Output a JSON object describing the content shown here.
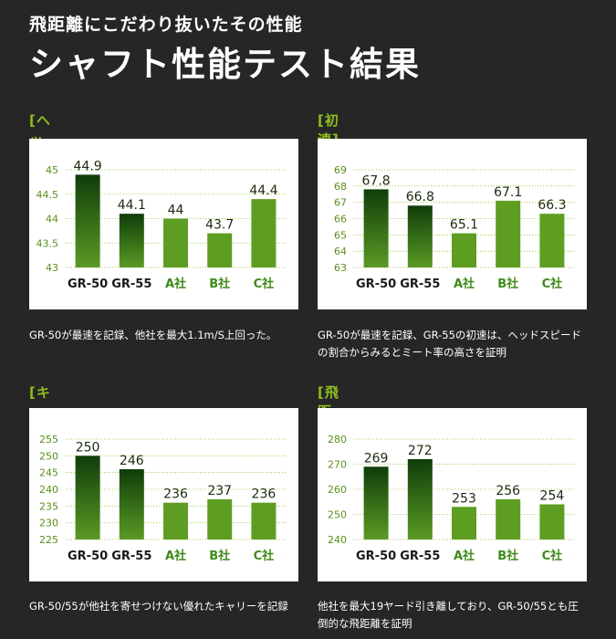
{
  "header": {
    "subtitle": "飛距離にこだわり抜いたその性能",
    "title": "シャフト性能テスト結果"
  },
  "colors": {
    "accent": "#8fbf1e",
    "gr_dark": "#0f3d0a",
    "gr_light": "#5a9a24",
    "other": "#5d9e22",
    "gr_label": "#1a1a1a",
    "other_label": "#3e8a1a"
  },
  "chart_data": [
    {
      "type": "bar",
      "heading": "[ヘッドスピード]",
      "categories": [
        "GR-50",
        "GR-55",
        "A社",
        "B社",
        "C社"
      ],
      "values": [
        44.9,
        44.1,
        44,
        43.7,
        44.4
      ],
      "value_labels": [
        "44.9",
        "44.1",
        "44",
        "43.7",
        "44.4"
      ],
      "ylim": [
        43,
        45
      ],
      "yticks": [
        "43",
        "43.5",
        "44",
        "44.5",
        "45"
      ],
      "grid": true,
      "caption": "GR-50が最速を記録、他社を最大1.1m/S上回った。"
    },
    {
      "type": "bar",
      "heading": "[初速]",
      "categories": [
        "GR-50",
        "GR-55",
        "A社",
        "B社",
        "C社"
      ],
      "values": [
        67.8,
        66.8,
        65.1,
        67.1,
        66.3
      ],
      "value_labels": [
        "67.8",
        "66.8",
        "65.1",
        "67.1",
        "66.3"
      ],
      "ylim": [
        63,
        69
      ],
      "yticks": [
        "63",
        "64",
        "65",
        "66",
        "67",
        "68",
        "69"
      ],
      "grid": true,
      "caption": "GR-50が最速を記録、GR-55の初速は、ヘッドスピードの割合からみるとミート率の高さを証明"
    },
    {
      "type": "bar",
      "heading": "[キャリー]",
      "categories": [
        "GR-50",
        "GR-55",
        "A社",
        "B社",
        "C社"
      ],
      "values": [
        250,
        246,
        236,
        237,
        236
      ],
      "value_labels": [
        "250",
        "246",
        "236",
        "237",
        "236"
      ],
      "ylim": [
        225,
        255
      ],
      "yticks": [
        "225",
        "230",
        "235",
        "240",
        "245",
        "250",
        "255"
      ],
      "grid": true,
      "caption": "GR-50/55が他社を寄せつけない優れたキャリーを記録"
    },
    {
      "type": "bar",
      "heading": "[飛距離]",
      "categories": [
        "GR-50",
        "GR-55",
        "A社",
        "B社",
        "C社"
      ],
      "values": [
        269,
        272,
        253,
        256,
        254
      ],
      "value_labels": [
        "269",
        "272",
        "253",
        "256",
        "254"
      ],
      "ylim": [
        240,
        280
      ],
      "yticks": [
        "240",
        "250",
        "260",
        "270",
        "280"
      ],
      "grid": true,
      "caption": "他社を最大19ヤード引き離しており、GR-50/55とも圧倒的な飛距離を証明"
    }
  ]
}
